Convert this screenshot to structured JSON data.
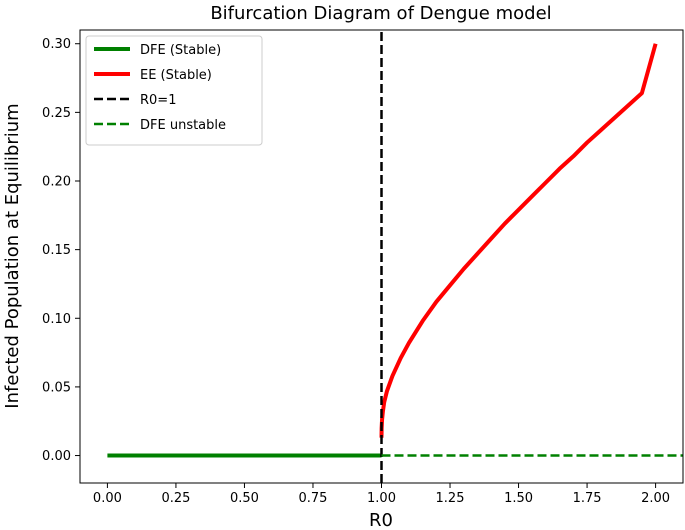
{
  "chart_data": {
    "type": "line",
    "title": "Bifurcation Diagram of Dengue model",
    "xlabel": "R0",
    "ylabel": "Infected Population at Equilibrium",
    "xlim": [
      -0.1,
      2.1
    ],
    "ylim": [
      -0.02,
      0.31
    ],
    "xticks": [
      0.0,
      0.25,
      0.5,
      0.75,
      1.0,
      1.25,
      1.5,
      1.75,
      2.0
    ],
    "xtick_labels": [
      "0.00",
      "0.25",
      "0.50",
      "0.75",
      "1.00",
      "1.25",
      "1.50",
      "1.75",
      "2.00"
    ],
    "yticks": [
      0.0,
      0.05,
      0.1,
      0.15,
      0.2,
      0.25,
      0.3
    ],
    "ytick_labels": [
      "0.00",
      "0.05",
      "0.10",
      "0.15",
      "0.20",
      "0.25",
      "0.30"
    ],
    "grid": false,
    "legend_position": "top-left",
    "series": [
      {
        "name": "DFE (Stable)",
        "color": "#008000",
        "style": "solid",
        "x": [
          0.0,
          1.0
        ],
        "y": [
          0.0,
          0.0
        ]
      },
      {
        "name": "EE (Stable)",
        "color": "#ff0000",
        "style": "solid",
        "x": [
          1.0,
          1.0005,
          1.002,
          1.005,
          1.01,
          1.02,
          1.04,
          1.07,
          1.1,
          1.15,
          1.2,
          1.25,
          1.3,
          1.35,
          1.4,
          1.45,
          1.5,
          1.55,
          1.6,
          1.65,
          1.7,
          1.75,
          1.8,
          1.85,
          1.9,
          1.95,
          2.0
        ],
        "y": [
          0.013,
          0.02,
          0.026,
          0.032,
          0.039,
          0.047,
          0.058,
          0.071,
          0.082,
          0.098,
          0.112,
          0.124,
          0.136,
          0.147,
          0.158,
          0.169,
          0.179,
          0.189,
          0.199,
          0.209,
          0.218,
          0.228,
          0.237,
          0.246,
          0.255,
          0.264,
          0.3
        ]
      },
      {
        "name": "R0=1",
        "color": "#000000",
        "style": "dashed",
        "orientation": "vertical",
        "x": [
          1.0,
          1.0
        ],
        "y": [
          -0.02,
          0.31
        ]
      },
      {
        "name": "DFE unstable",
        "color": "#008000",
        "style": "dashed",
        "x": [
          1.0,
          2.1
        ],
        "y": [
          0.0,
          0.0
        ]
      }
    ]
  }
}
